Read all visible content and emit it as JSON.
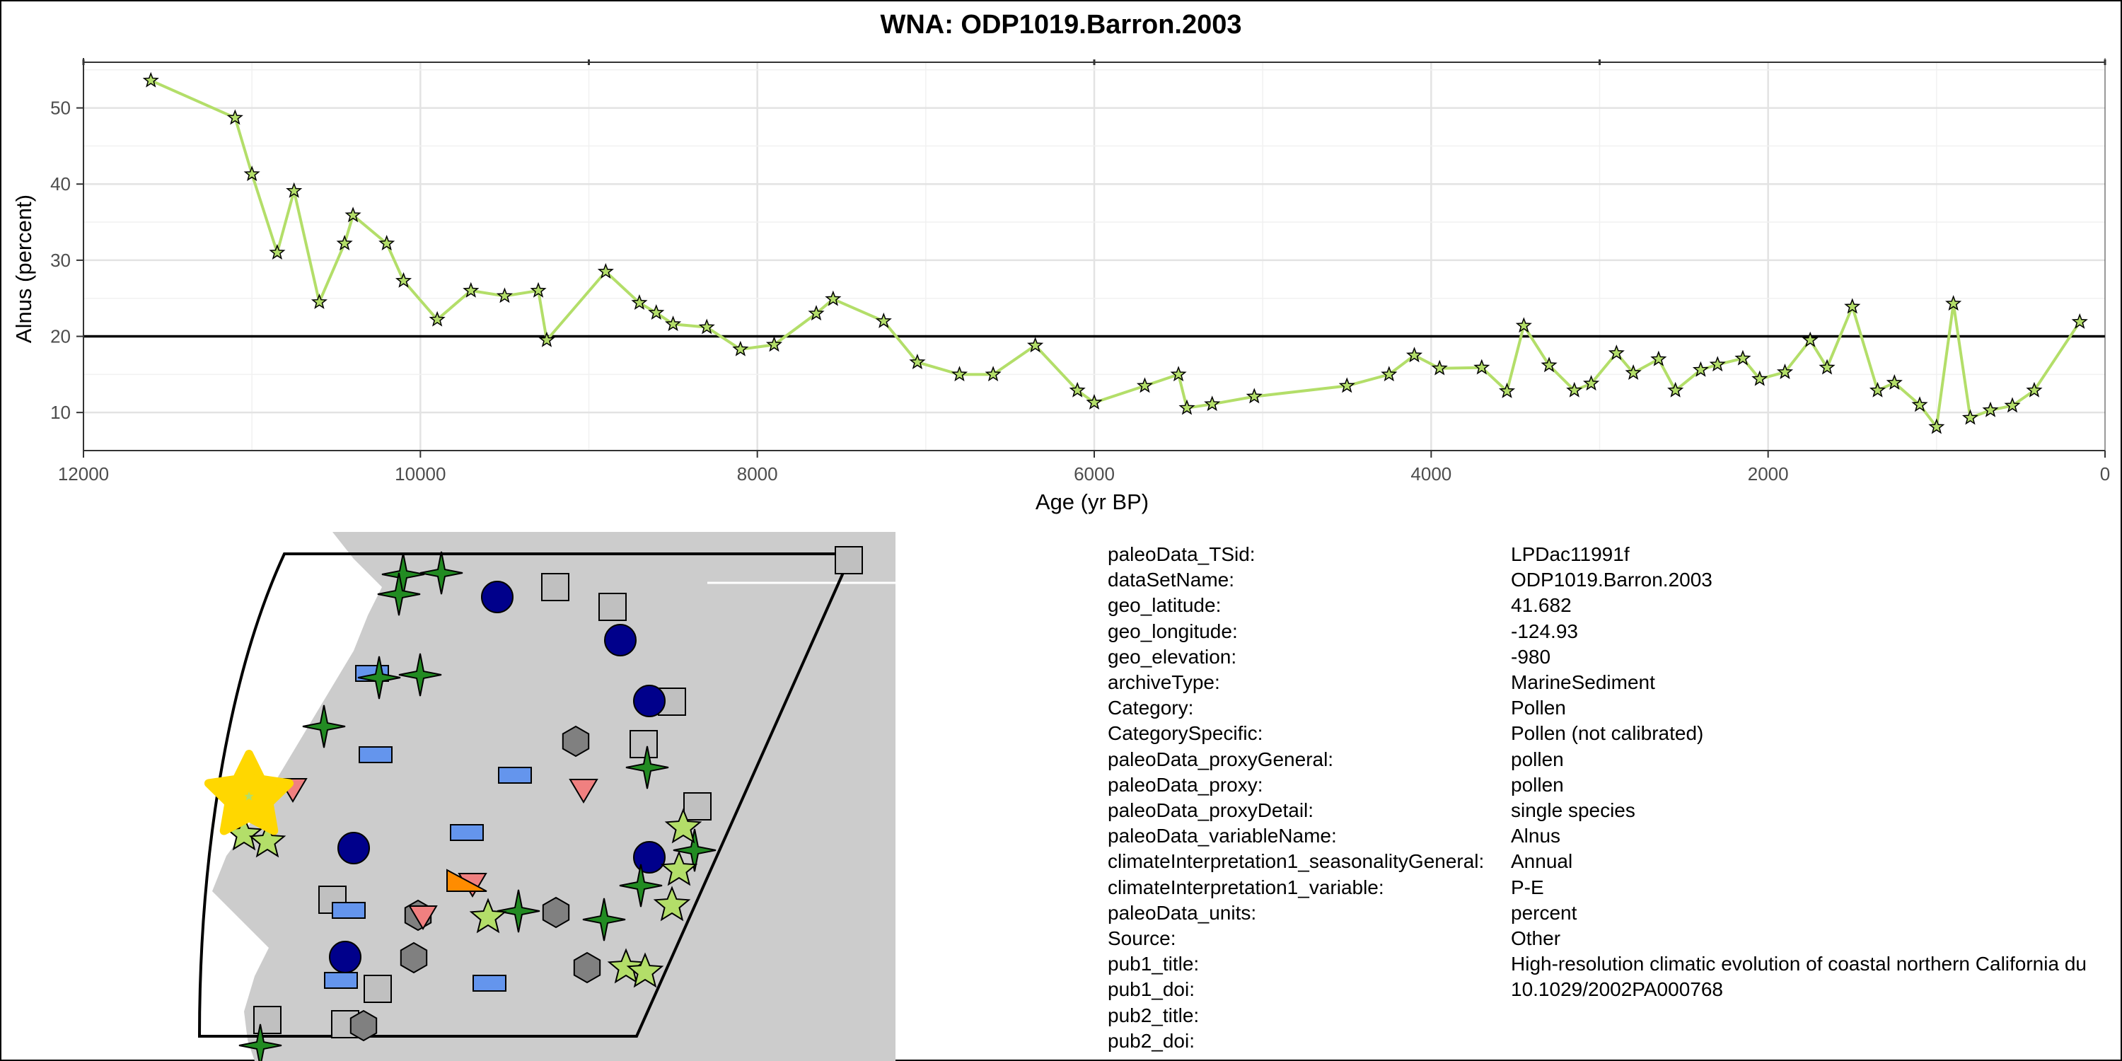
{
  "chart_data": {
    "type": "line",
    "title": "WNA: ODP1019.Barron.2003",
    "xlabel": "Age (yr BP)",
    "ylabel": "Alnus (percent)",
    "xlim": [
      12000,
      0
    ],
    "ylim": [
      5,
      56
    ],
    "x_reversed": true,
    "x_ticks": [
      "12000",
      "10000",
      "8000",
      "6000",
      "4000",
      "2000",
      "0"
    ],
    "y_ticks": [
      "10",
      "20",
      "30",
      "40",
      "50"
    ],
    "reference_line": 20,
    "grid": true,
    "line_color": "#b3de69",
    "marker": "star",
    "marker_color": "#b3de69",
    "points": [
      [
        11600,
        53.6
      ],
      [
        11100,
        48.7
      ],
      [
        11000,
        41.3
      ],
      [
        10850,
        31.0
      ],
      [
        10750,
        39.1
      ],
      [
        10600,
        24.5
      ],
      [
        10450,
        32.2
      ],
      [
        10400,
        35.9
      ],
      [
        10200,
        32.2
      ],
      [
        10100,
        27.3
      ],
      [
        9900,
        22.2
      ],
      [
        9700,
        26.0
      ],
      [
        9500,
        25.3
      ],
      [
        9300,
        26.0
      ],
      [
        9250,
        19.5
      ],
      [
        8900,
        28.5
      ],
      [
        8700,
        24.4
      ],
      [
        8600,
        23.1
      ],
      [
        8500,
        21.6
      ],
      [
        8300,
        21.2
      ],
      [
        8100,
        18.3
      ],
      [
        7900,
        18.9
      ],
      [
        7650,
        23.0
      ],
      [
        7550,
        24.9
      ],
      [
        7250,
        22.0
      ],
      [
        7050,
        16.6
      ],
      [
        6800,
        15.0
      ],
      [
        6600,
        15.0
      ],
      [
        6350,
        18.8
      ],
      [
        6100,
        12.9
      ],
      [
        6000,
        11.3
      ],
      [
        5700,
        13.5
      ],
      [
        5500,
        15.0
      ],
      [
        5450,
        10.6
      ],
      [
        5300,
        11.1
      ],
      [
        5050,
        12.1
      ],
      [
        4500,
        13.5
      ],
      [
        4250,
        15.0
      ],
      [
        4100,
        17.5
      ],
      [
        3950,
        15.8
      ],
      [
        3700,
        15.9
      ],
      [
        3550,
        12.8
      ],
      [
        3450,
        21.4
      ],
      [
        3300,
        16.2
      ],
      [
        3150,
        12.9
      ],
      [
        3050,
        13.8
      ],
      [
        2900,
        17.8
      ],
      [
        2800,
        15.2
      ],
      [
        2650,
        17.0
      ],
      [
        2550,
        12.9
      ],
      [
        2400,
        15.6
      ],
      [
        2300,
        16.3
      ],
      [
        2150,
        17.1
      ],
      [
        2050,
        14.4
      ],
      [
        1900,
        15.3
      ],
      [
        1750,
        19.5
      ],
      [
        1650,
        15.9
      ],
      [
        1500,
        23.9
      ],
      [
        1350,
        12.9
      ],
      [
        1250,
        13.9
      ],
      [
        1100,
        11.0
      ],
      [
        1000,
        8.1
      ],
      [
        900,
        24.3
      ],
      [
        800,
        9.3
      ],
      [
        680,
        10.3
      ],
      [
        550,
        10.9
      ],
      [
        420,
        12.9
      ],
      [
        150,
        21.9
      ]
    ]
  },
  "map": {
    "land_color": "#cccccc",
    "outline_color": "#000000",
    "site_color": "#ffd700",
    "legend_colors": {
      "pollen": "#b3de69",
      "plant_macrofossil": "#228b22",
      "lake_sediment_blue": "#6495ed",
      "circle_navy": "#00008b",
      "hexagon": "#808080",
      "square": "#c0c0c0",
      "triangle_down": "#f08080",
      "triangle_orange": "#ff8c00"
    }
  },
  "metadata": [
    {
      "key": "paleoData_TSid:",
      "value": "LPDac11991f"
    },
    {
      "key": "dataSetName:",
      "value": "ODP1019.Barron.2003"
    },
    {
      "key": "geo_latitude:",
      "value": "41.682"
    },
    {
      "key": "geo_longitude:",
      "value": "-124.93"
    },
    {
      "key": "geo_elevation:",
      "value": "-980"
    },
    {
      "key": "archiveType:",
      "value": "MarineSediment"
    },
    {
      "key": "Category:",
      "value": "Pollen"
    },
    {
      "key": "CategorySpecific:",
      "value": "Pollen (not calibrated)"
    },
    {
      "key": "paleoData_proxyGeneral:",
      "value": "pollen"
    },
    {
      "key": "paleoData_proxy:",
      "value": "pollen"
    },
    {
      "key": "paleoData_proxyDetail:",
      "value": "single species"
    },
    {
      "key": "paleoData_variableName:",
      "value": "Alnus"
    },
    {
      "key": "climateInterpretation1_seasonalityGeneral:",
      "value": "Annual"
    },
    {
      "key": "climateInterpretation1_variable:",
      "value": "P-E"
    },
    {
      "key": "paleoData_units:",
      "value": "percent"
    },
    {
      "key": "Source:",
      "value": "Other"
    },
    {
      "key": "pub1_title:",
      "value": "High-resolution climatic evolution of coastal northern California du"
    },
    {
      "key": "pub1_doi:",
      "value": "10.1029/2002PA000768"
    },
    {
      "key": "pub2_title:",
      "value": ""
    },
    {
      "key": "pub2_doi:",
      "value": ""
    }
  ]
}
